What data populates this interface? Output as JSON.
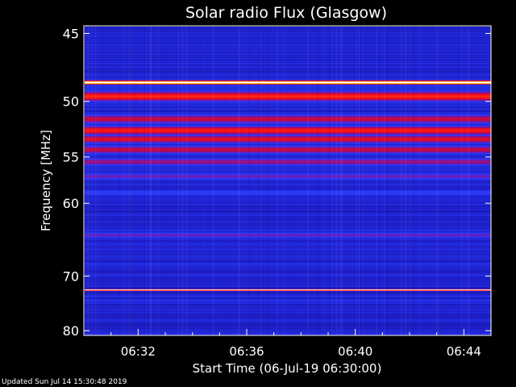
{
  "chart_data": {
    "type": "heatmap",
    "title": "Solar radio Flux (Glasgow)",
    "xlabel": "Start Time (06-Jul-19 06:30:00)",
    "ylabel": "Frequency [MHz]",
    "x_ticks": [
      "06:32",
      "06:36",
      "06:40",
      "06:44"
    ],
    "y_ticks": [
      45,
      50,
      55,
      60,
      70,
      80
    ],
    "ylim": [
      44.5,
      81
    ],
    "y_scale": "reciprocal",
    "colormap": "blue-red-yellow-white",
    "bands": [
      {
        "freq": 45.6,
        "level": 0.15
      },
      {
        "freq": 48.5,
        "level": 1.0
      },
      {
        "freq": 49.6,
        "level": 0.7
      },
      {
        "freq": 51.5,
        "level": 0.55
      },
      {
        "freq": 52.5,
        "level": 0.68
      },
      {
        "freq": 53.3,
        "level": 0.6
      },
      {
        "freq": 54.3,
        "level": 0.55
      },
      {
        "freq": 55.5,
        "level": 0.48
      },
      {
        "freq": 57.0,
        "level": 0.4
      },
      {
        "freq": 58.8,
        "level": 0.32
      },
      {
        "freq": 64.0,
        "level": 0.4
      },
      {
        "freq": 72.3,
        "level": 1.0
      }
    ],
    "background_level": 0.18
  },
  "footer": "Updated Sun Jul 14 15:30:48 2019",
  "colors": {
    "background": "#000000",
    "axis": "#ffffff",
    "low": "#1a1aa8",
    "mid": "#3040ff",
    "high": "#ff1a1a",
    "peak": "#ffffff"
  }
}
